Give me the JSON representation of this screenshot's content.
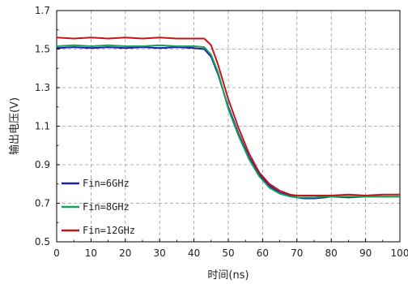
{
  "chart_data": {
    "type": "line",
    "xlabel": "时间(ns)",
    "ylabel": "输出电压(V)",
    "xlim": [
      0,
      100
    ],
    "ylim": [
      0.5,
      1.7
    ],
    "xticks": [
      "0",
      "10",
      "20",
      "30",
      "40",
      "50",
      "60",
      "70",
      "80",
      "90",
      "100"
    ],
    "yticks": [
      "0.5",
      "0.7",
      "0.9",
      "1.1",
      "1.3",
      "1.5",
      "1.7"
    ],
    "grid": true,
    "legend_position": "bottom-left",
    "series": [
      {
        "name": "Fin=6GHz",
        "color": "#1f1fa8",
        "x": [
          0,
          5,
          10,
          15,
          20,
          25,
          30,
          35,
          40,
          43,
          45,
          47,
          50,
          53,
          56,
          59,
          62,
          65,
          68,
          70,
          72,
          75,
          78,
          80,
          85,
          90,
          95,
          100
        ],
        "y": [
          1.505,
          1.51,
          1.505,
          1.51,
          1.505,
          1.51,
          1.505,
          1.51,
          1.505,
          1.5,
          1.46,
          1.37,
          1.2,
          1.06,
          0.94,
          0.85,
          0.79,
          0.755,
          0.74,
          0.73,
          0.725,
          0.725,
          0.73,
          0.735,
          0.73,
          0.735,
          0.735,
          0.735
        ]
      },
      {
        "name": "Fin=8GHz",
        "color": "#1aa05a",
        "x": [
          0,
          5,
          10,
          15,
          20,
          25,
          30,
          35,
          40,
          43,
          45,
          47,
          50,
          53,
          56,
          59,
          62,
          65,
          68,
          70,
          72,
          75,
          78,
          80,
          85,
          90,
          95,
          100
        ],
        "y": [
          1.515,
          1.52,
          1.515,
          1.52,
          1.515,
          1.515,
          1.52,
          1.515,
          1.515,
          1.51,
          1.47,
          1.38,
          1.19,
          1.05,
          0.93,
          0.84,
          0.78,
          0.75,
          0.735,
          0.73,
          0.73,
          0.73,
          0.735,
          0.735,
          0.735,
          0.735,
          0.735,
          0.735
        ]
      },
      {
        "name": "Fin=12GHz",
        "color": "#c01818",
        "x": [
          0,
          5,
          10,
          15,
          20,
          25,
          30,
          35,
          40,
          43,
          45,
          47,
          50,
          53,
          56,
          59,
          62,
          65,
          68,
          70,
          72,
          75,
          78,
          80,
          85,
          90,
          95,
          100
        ],
        "y": [
          1.56,
          1.555,
          1.56,
          1.555,
          1.56,
          1.555,
          1.56,
          1.555,
          1.555,
          1.555,
          1.52,
          1.42,
          1.24,
          1.09,
          0.96,
          0.86,
          0.8,
          0.765,
          0.745,
          0.74,
          0.74,
          0.74,
          0.74,
          0.74,
          0.745,
          0.74,
          0.745,
          0.745
        ]
      }
    ]
  }
}
